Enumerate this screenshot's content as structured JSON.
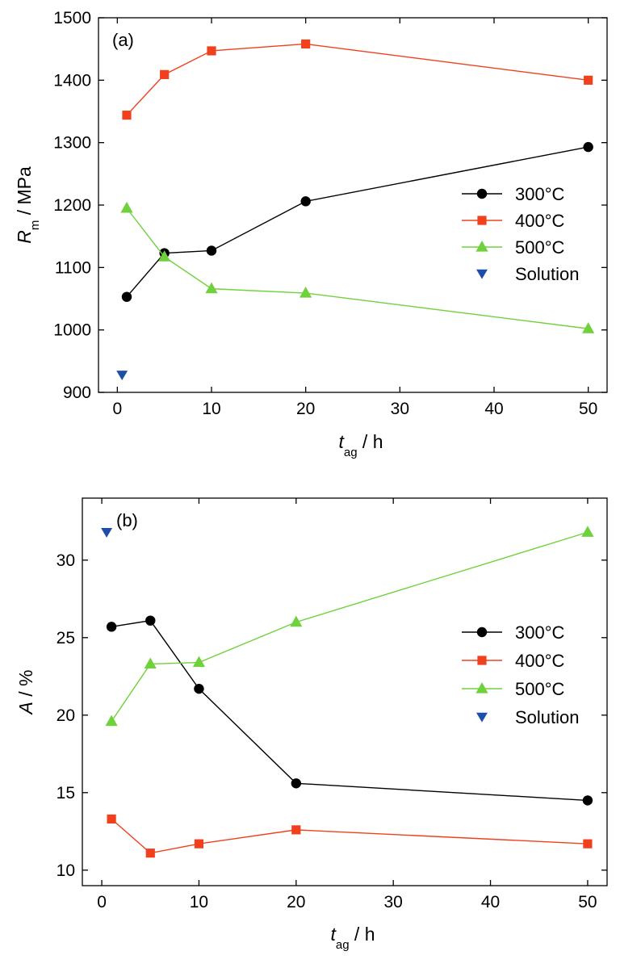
{
  "chart_data": [
    {
      "type": "line",
      "panel_label": "(a)",
      "ylabel": {
        "symbol": "R",
        "subscript": "m",
        "unit": " / MPa"
      },
      "xlabel": {
        "symbol": "t",
        "subscript": "ag",
        "unit": " / h"
      },
      "xlim": [
        -2,
        52
      ],
      "ylim": [
        900,
        1500
      ],
      "xticks": [
        0,
        10,
        20,
        30,
        40,
        50
      ],
      "yticks": [
        900,
        1000,
        1100,
        1200,
        1300,
        1400,
        1500
      ],
      "legend_position": "right",
      "series": [
        {
          "name": "300°C",
          "color": "#000000",
          "marker": "circle",
          "line": true,
          "x": [
            1,
            5,
            10,
            20,
            50
          ],
          "y": [
            1053,
            1123,
            1127,
            1206,
            1293
          ]
        },
        {
          "name": "400°C",
          "color": "#f0401e",
          "marker": "square",
          "line": true,
          "x": [
            1,
            5,
            10,
            20,
            50
          ],
          "y": [
            1344,
            1409,
            1447,
            1458,
            1400
          ]
        },
        {
          "name": "500°C",
          "color": "#6fd23c",
          "marker": "triangle-up",
          "line": true,
          "x": [
            1,
            5,
            10,
            20,
            50
          ],
          "y": [
            1195,
            1117,
            1066,
            1059,
            1002
          ]
        },
        {
          "name": "Solution",
          "color": "#1e4fa8",
          "marker": "triangle-down",
          "line": false,
          "x": [
            0.5
          ],
          "y": [
            928
          ]
        }
      ]
    },
    {
      "type": "line",
      "panel_label": "(b)",
      "ylabel": {
        "symbol": "A",
        "subscript": "",
        "unit": " / %"
      },
      "xlabel": {
        "symbol": "t",
        "subscript": "ag",
        "unit": " / h"
      },
      "xlim": [
        -2,
        52
      ],
      "ylim": [
        9,
        34
      ],
      "xticks": [
        0,
        10,
        20,
        30,
        40,
        50
      ],
      "yticks": [
        10,
        15,
        20,
        25,
        30
      ],
      "legend_position": "right",
      "series": [
        {
          "name": "300°C",
          "color": "#000000",
          "marker": "circle",
          "line": true,
          "x": [
            1,
            5,
            10,
            20,
            50
          ],
          "y": [
            25.7,
            26.1,
            21.7,
            15.6,
            14.5
          ]
        },
        {
          "name": "400°C",
          "color": "#f0401e",
          "marker": "square",
          "line": true,
          "x": [
            1,
            5,
            10,
            20,
            50
          ],
          "y": [
            13.3,
            11.1,
            11.7,
            12.6,
            11.7
          ]
        },
        {
          "name": "500°C",
          "color": "#6fd23c",
          "marker": "triangle-up",
          "line": true,
          "x": [
            1,
            5,
            10,
            20,
            50
          ],
          "y": [
            19.6,
            23.3,
            23.4,
            26.0,
            31.8
          ]
        },
        {
          "name": "Solution",
          "color": "#1e4fa8",
          "marker": "triangle-down",
          "line": false,
          "x": [
            0.5
          ],
          "y": [
            31.8
          ]
        }
      ]
    }
  ]
}
